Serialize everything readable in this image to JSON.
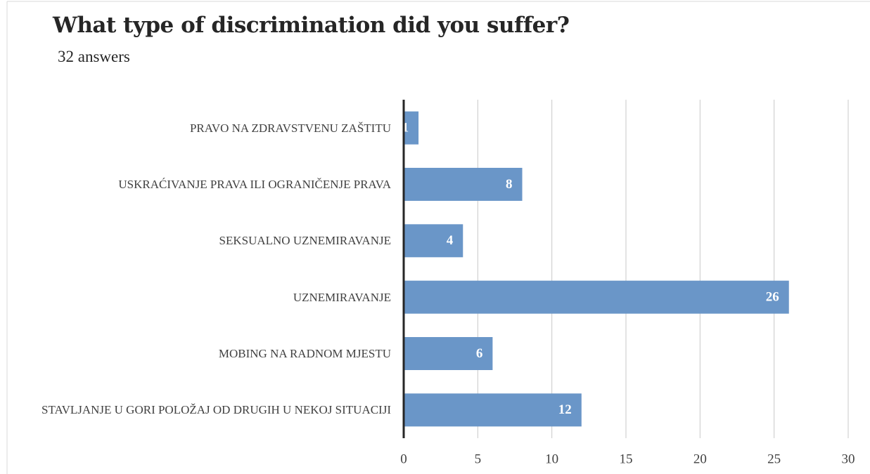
{
  "chart_data": {
    "type": "barh",
    "title": "What type of discrimination did you suffer?",
    "subtitle": "32 answers",
    "categories": [
      "PRAVO NA ZDRAVSTVENU ZAŠTITU",
      "USKRAĆIVANJE PRAVA ILI OGRANIČENJE PRAVA",
      "SEKSUALNO UZNEMIRAVANJE",
      "UZNEMIRAVANJE",
      "MOBING NA RADNOM MJESTU",
      "STAVLJANJE U GORI POLOŽAJ OD DRUGIH U NEKOJ SITUACIJI"
    ],
    "values": [
      1,
      8,
      4,
      26,
      6,
      12
    ],
    "color": "#6a96c8",
    "xlim": [
      0,
      30
    ],
    "xticks": [
      0,
      5,
      10,
      15,
      20,
      25,
      30
    ],
    "grid": true
  }
}
